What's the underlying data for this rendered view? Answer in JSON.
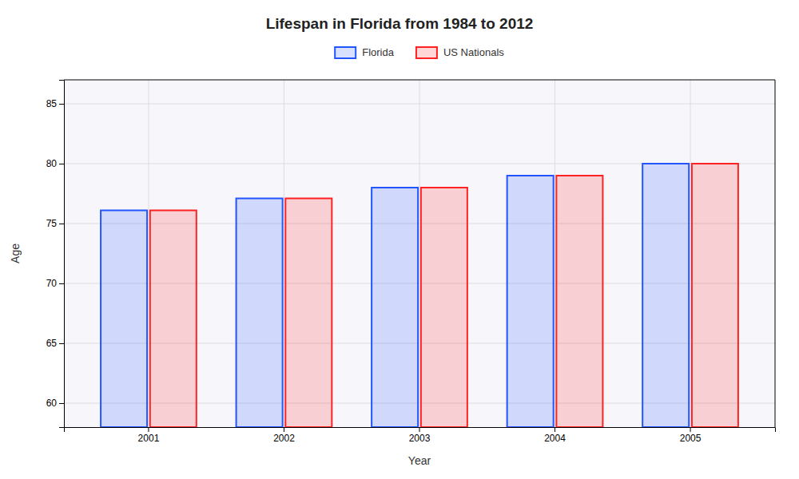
{
  "chart_data": {
    "type": "bar",
    "title": "Lifespan in Florida from 1984 to 2012",
    "xlabel": "Year",
    "ylabel": "Age",
    "categories": [
      "2001",
      "2002",
      "2003",
      "2004",
      "2005"
    ],
    "series": [
      {
        "name": "Florida",
        "color": "#2255ff",
        "values": [
          76.1,
          77.1,
          78.0,
          79.0,
          80.0
        ]
      },
      {
        "name": "US Nationals",
        "color": "#ff2222",
        "values": [
          76.1,
          77.1,
          78.0,
          79.0,
          80.0
        ]
      }
    ],
    "ylim": [
      58,
      87
    ],
    "yticks": [
      60,
      65,
      70,
      75,
      80,
      85
    ],
    "grid": true,
    "legend": "top"
  }
}
